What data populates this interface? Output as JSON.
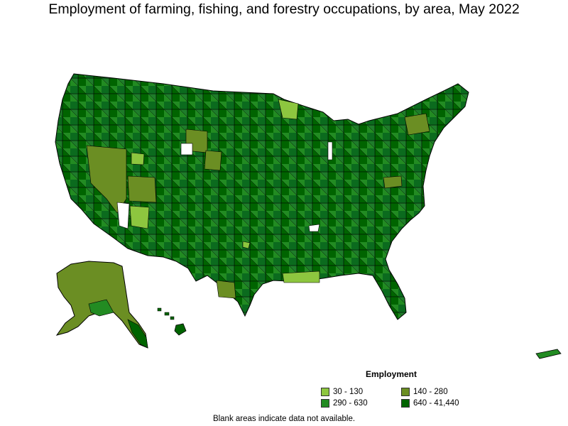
{
  "title": "Employment of farming, fishing, and forestry occupations, by area, May 2022",
  "legend": {
    "title": "Employment",
    "items": [
      {
        "label": "30 - 130",
        "color": "#8dc63f"
      },
      {
        "label": "140 - 280",
        "color": "#6b8e23"
      },
      {
        "label": "290 - 630",
        "color": "#228b22"
      },
      {
        "label": "640 - 41,440",
        "color": "#006400"
      }
    ]
  },
  "footnote": "Blank areas indicate data not available."
}
